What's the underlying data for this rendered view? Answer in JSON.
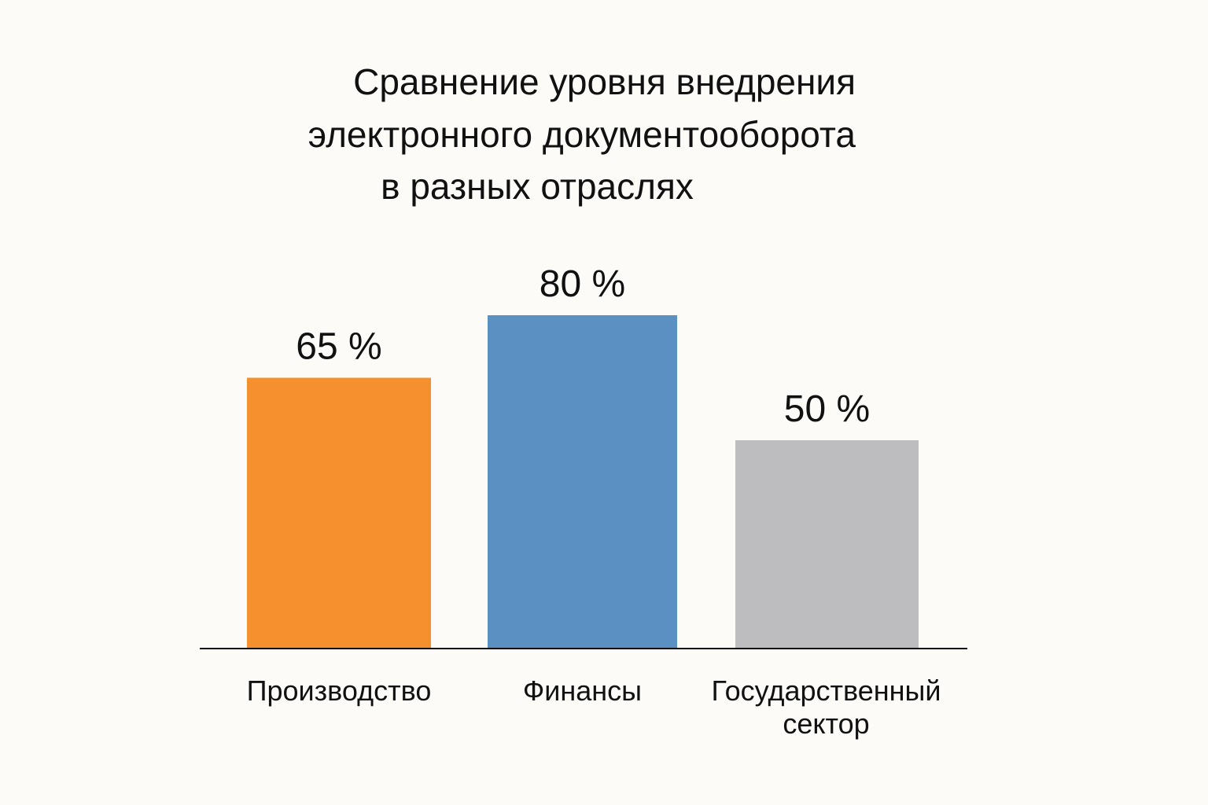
{
  "chart_data": {
    "type": "bar",
    "title": "Сравнение уровня внедрения электронного документооборота в разных отраслях",
    "title_lines": [
      "Сравнение уровня внедрения",
      "электронного документооборота",
      "в разных отраслях"
    ],
    "xlabel": "",
    "ylabel": "",
    "categories": [
      "Производство",
      "Финансы",
      "Государственный сектор"
    ],
    "category_lines": [
      [
        "Производство"
      ],
      [
        "Финансы"
      ],
      [
        "Государственный",
        "сектор"
      ]
    ],
    "values": [
      65,
      80,
      50
    ],
    "value_labels": [
      "65 %",
      "80 %",
      "50 %"
    ],
    "unit": "%",
    "ylim": [
      0,
      100
    ],
    "grid": false,
    "legend": "none",
    "colors": [
      "#f5902e",
      "#5b90c2",
      "#bdbdc0"
    ],
    "axis_color": "#111111",
    "background": "#fcfbf7"
  }
}
